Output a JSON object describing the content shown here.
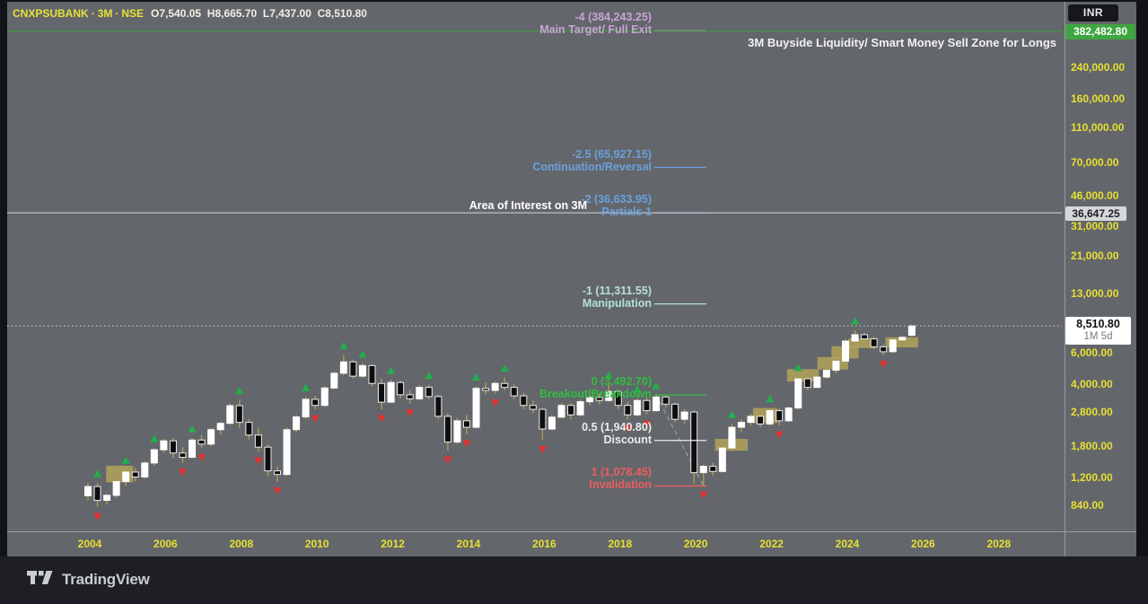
{
  "header": {
    "symbol": "CNXPSUBANK",
    "separator": "·",
    "interval": "3M",
    "exchange": "NSE",
    "ohlc": {
      "o_label": "O",
      "o": "7,540.05",
      "h_label": "H",
      "h": "8,665.70",
      "l_label": "L",
      "l": "7,437.00",
      "c_label": "C",
      "c": "8,510.80"
    }
  },
  "annotations": {
    "buyside": "3M Buyside Liquidity/ Smart Money Sell Zone for Longs",
    "area_of_interest": "Area of Interest on 3M"
  },
  "axis": {
    "currency": "INR",
    "badges": {
      "liquidity": "382,482.80",
      "area": "36,647.25",
      "price": "8,510.80",
      "countdown": "1M 5d"
    },
    "price_ticks": [
      {
        "label": "240,000.00",
        "value": 240000
      },
      {
        "label": "160,000.00",
        "value": 160000
      },
      {
        "label": "110,000.00",
        "value": 110000
      },
      {
        "label": "70,000.00",
        "value": 70000
      },
      {
        "label": "46,000.00",
        "value": 46000
      },
      {
        "label": "31,000.00",
        "value": 31000
      },
      {
        "label": "21,000.00",
        "value": 21000
      },
      {
        "label": "13,000.00",
        "value": 13000
      },
      {
        "label": "6,000.00",
        "value": 6000
      },
      {
        "label": "4,000.00",
        "value": 4000
      },
      {
        "label": "2,800.00",
        "value": 2800
      },
      {
        "label": "1,800.00",
        "value": 1800
      },
      {
        "label": "1,200.00",
        "value": 1200
      },
      {
        "label": "840.00",
        "value": 840
      }
    ],
    "year_ticks": [
      2004,
      2006,
      2008,
      2010,
      2012,
      2014,
      2016,
      2018,
      2020,
      2022,
      2024,
      2026,
      2028
    ]
  },
  "chart_data": {
    "type": "candlestick",
    "symbol": "CNXPSUBANK",
    "exchange": "NSE",
    "interval": "3M",
    "currency": "INR",
    "scale": "log",
    "ylim": [
      800,
      430000
    ],
    "xlim": [
      "2004Q1",
      "2029Q2"
    ],
    "grid": false,
    "candles": [
      [
        "2004Q1",
        950,
        1120,
        900,
        1070
      ],
      [
        "2004Q2",
        1070,
        1120,
        820,
        895
      ],
      [
        "2004Q3",
        895,
        975,
        845,
        955
      ],
      [
        "2004Q4",
        955,
        1160,
        920,
        1140
      ],
      [
        "2005Q1",
        1140,
        1330,
        1080,
        1290
      ],
      [
        "2005Q2",
        1290,
        1360,
        1140,
        1210
      ],
      [
        "2005Q3",
        1210,
        1480,
        1190,
        1450
      ],
      [
        "2005Q4",
        1450,
        1760,
        1400,
        1720
      ],
      [
        "2006Q1",
        1720,
        1980,
        1650,
        1930
      ],
      [
        "2006Q2",
        1930,
        2000,
        1540,
        1650
      ],
      [
        "2006Q3",
        1650,
        1780,
        1450,
        1560
      ],
      [
        "2006Q4",
        1560,
        2000,
        1550,
        1950
      ],
      [
        "2007Q1",
        1950,
        2080,
        1750,
        1850
      ],
      [
        "2007Q2",
        1850,
        2280,
        1800,
        2230
      ],
      [
        "2007Q3",
        2230,
        2480,
        2100,
        2420
      ],
      [
        "2007Q4",
        2420,
        3120,
        2380,
        3040
      ],
      [
        "2008Q1",
        3040,
        3280,
        2280,
        2450
      ],
      [
        "2008Q2",
        2450,
        2560,
        1950,
        2080
      ],
      [
        "2008Q3",
        2080,
        2300,
        1680,
        1780
      ],
      [
        "2008Q4",
        1780,
        1850,
        1220,
        1310
      ],
      [
        "2009Q1",
        1310,
        1390,
        1140,
        1250
      ],
      [
        "2009Q2",
        1250,
        2300,
        1230,
        2230
      ],
      [
        "2009Q3",
        2230,
        2700,
        2150,
        2630
      ],
      [
        "2009Q4",
        2630,
        3400,
        2550,
        3300
      ],
      [
        "2010Q1",
        3300,
        3450,
        2900,
        3050
      ],
      [
        "2010Q2",
        3050,
        3900,
        3000,
        3820
      ],
      [
        "2010Q3",
        3820,
        4700,
        3750,
        4620
      ],
      [
        "2010Q4",
        4620,
        5850,
        4500,
        5350
      ],
      [
        "2011Q1",
        5350,
        5500,
        4300,
        4450
      ],
      [
        "2011Q2",
        4450,
        5250,
        4350,
        5100
      ],
      [
        "2011Q3",
        5100,
        5200,
        3900,
        4050
      ],
      [
        "2011Q4",
        4050,
        4300,
        2900,
        3180
      ],
      [
        "2012Q1",
        3180,
        4250,
        3150,
        4100
      ],
      [
        "2012Q2",
        4100,
        4200,
        3350,
        3500
      ],
      [
        "2012Q3",
        3500,
        3720,
        3120,
        3320
      ],
      [
        "2012Q4",
        3320,
        3950,
        3280,
        3850
      ],
      [
        "2013Q1",
        3850,
        3980,
        3300,
        3420
      ],
      [
        "2013Q2",
        3420,
        3500,
        2550,
        2650
      ],
      [
        "2013Q3",
        2650,
        2750,
        1700,
        1900
      ],
      [
        "2013Q4",
        1900,
        2600,
        1850,
        2500
      ],
      [
        "2014Q1",
        2500,
        2700,
        2100,
        2300
      ],
      [
        "2014Q2",
        2300,
        3900,
        2250,
        3800
      ],
      [
        "2014Q3",
        3800,
        4100,
        3500,
        3700
      ],
      [
        "2014Q4",
        3700,
        4150,
        3550,
        4050
      ],
      [
        "2015Q1",
        4050,
        4380,
        3700,
        3850
      ],
      [
        "2015Q2",
        3850,
        4000,
        3300,
        3450
      ],
      [
        "2015Q3",
        3450,
        3600,
        2900,
        3050
      ],
      [
        "2015Q4",
        3050,
        3250,
        2750,
        2900
      ],
      [
        "2016Q1",
        2900,
        2950,
        1950,
        2250
      ],
      [
        "2016Q2",
        2250,
        2700,
        2200,
        2620
      ],
      [
        "2016Q3",
        2620,
        3150,
        2580,
        3050
      ],
      [
        "2016Q4",
        3050,
        3150,
        2550,
        2700
      ],
      [
        "2017Q1",
        2700,
        3300,
        2650,
        3200
      ],
      [
        "2017Q2",
        3200,
        3500,
        3050,
        3380
      ],
      [
        "2017Q3",
        3380,
        3550,
        3100,
        3250
      ],
      [
        "2017Q4",
        3250,
        4000,
        3200,
        3650
      ],
      [
        "2018Q1",
        3650,
        3750,
        2900,
        3050
      ],
      [
        "2018Q2",
        3050,
        3200,
        2550,
        2700
      ],
      [
        "2018Q3",
        2700,
        3350,
        2650,
        3250
      ],
      [
        "2018Q4",
        3250,
        3400,
        2700,
        2850
      ],
      [
        "2019Q1",
        2850,
        3492.7,
        2800,
        3400
      ],
      [
        "2019Q2",
        3400,
        3480,
        2950,
        3100
      ],
      [
        "2019Q3",
        3100,
        3150,
        2450,
        2550
      ],
      [
        "2019Q4",
        2550,
        2900,
        2400,
        2800
      ],
      [
        "2020Q1",
        2800,
        2850,
        1115,
        1280
      ],
      [
        "2020Q2",
        1280,
        1420,
        1078.45,
        1390
      ],
      [
        "2020Q3",
        1390,
        1450,
        1230,
        1300
      ],
      [
        "2020Q4",
        1300,
        1800,
        1280,
        1760
      ],
      [
        "2021Q1",
        1760,
        2400,
        1700,
        2300
      ],
      [
        "2021Q2",
        2300,
        2550,
        2150,
        2450
      ],
      [
        "2021Q3",
        2450,
        2750,
        2350,
        2650
      ],
      [
        "2021Q4",
        2650,
        2800,
        2300,
        2400
      ],
      [
        "2022Q1",
        2400,
        2950,
        2350,
        2850
      ],
      [
        "2022Q2",
        2850,
        2950,
        2350,
        2500
      ],
      [
        "2022Q3",
        2500,
        3000,
        2450,
        2950
      ],
      [
        "2022Q4",
        2950,
        4400,
        2900,
        4300
      ],
      [
        "2023Q1",
        4300,
        4450,
        3700,
        3850
      ],
      [
        "2023Q2",
        3850,
        4500,
        3800,
        4400
      ],
      [
        "2023Q3",
        4400,
        4900,
        4300,
        4800
      ],
      [
        "2023Q4",
        4800,
        5500,
        4600,
        5400
      ],
      [
        "2024Q1",
        5400,
        7200,
        5350,
        7000
      ],
      [
        "2024Q2",
        7000,
        8050,
        6500,
        7600
      ],
      [
        "2024Q3",
        7600,
        7800,
        6800,
        7200
      ],
      [
        "2024Q4",
        7200,
        7400,
        6300,
        6500
      ],
      [
        "2025Q1",
        6500,
        6700,
        5850,
        6100
      ],
      [
        "2025Q2",
        6100,
        7300,
        6050,
        7100
      ],
      [
        "2025Q3",
        7100,
        7450,
        6900,
        7350
      ],
      [
        "2025Q4",
        7540.05,
        8665.7,
        7437.0,
        8510.8
      ]
    ],
    "markers": {
      "swing_high_indices": [
        1,
        4,
        7,
        11,
        16,
        23,
        27,
        29,
        32,
        36,
        41,
        44,
        55,
        58,
        60,
        68,
        72,
        75,
        81
      ],
      "swing_low_indices": [
        1,
        10,
        12,
        18,
        20,
        24,
        31,
        34,
        38,
        40,
        43,
        48,
        57,
        59,
        65,
        73,
        84
      ]
    },
    "zones": [
      {
        "i1": 2.3,
        "i2": 4.4,
        "p1": 1130,
        "p2": 1400
      },
      {
        "i1": 66.6,
        "i2": 69.3,
        "p1": 1700,
        "p2": 1980
      },
      {
        "i1": 70.6,
        "i2": 72.4,
        "p1": 2430,
        "p2": 2950
      },
      {
        "i1": 74.2,
        "i2": 76.8,
        "p1": 4150,
        "p2": 4870
      },
      {
        "i1": 77.4,
        "i2": 79.9,
        "p1": 4850,
        "p2": 5700
      },
      {
        "i1": 78.9,
        "i2": 81.0,
        "p1": 5600,
        "p2": 6550
      },
      {
        "i1": 80.7,
        "i2": 82.8,
        "p1": 6400,
        "p2": 7250
      },
      {
        "i1": 84.6,
        "i2": 87.3,
        "p1": 6450,
        "p2": 7350
      }
    ],
    "fib": {
      "anchor_high": {
        "index": 60,
        "time": "2019Q1",
        "price": 3492.7
      },
      "anchor_low": {
        "index": 65,
        "time": "2020Q2",
        "price": 1078.45
      },
      "levels": [
        {
          "level": -4,
          "price": 384243.25,
          "label": "-4 (384,243.25)",
          "name": "Main Target/ Full Exit",
          "color": "#c9a3d6"
        },
        {
          "level": -2.5,
          "price": 65927.15,
          "label": "-2.5 (65,927.15)",
          "name": "Continuation/Reversal",
          "color": "#6ba1dc"
        },
        {
          "level": -2,
          "price": 36633.95,
          "label": "-2 (36,633.95)",
          "name": "Partials 1",
          "color": "#6ba1dc"
        },
        {
          "level": -1,
          "price": 11311.55,
          "label": "-1 (11,311.55)",
          "name": "Manipulation",
          "color": "#b5e0da"
        },
        {
          "level": 0,
          "price": 3492.7,
          "label": "0 (3,492.70)",
          "name": "Breakout/Breakdown",
          "color": "#2fbe41"
        },
        {
          "level": 0.5,
          "price": 1940.8,
          "label": "0.5 (1,940.80)",
          "name": "Discount",
          "color": "#ececec"
        },
        {
          "level": 1,
          "price": 1078.45,
          "label": "1 (1,078.45)",
          "name": "Invalidation",
          "color": "#ea5f5f"
        }
      ]
    },
    "hlines": [
      {
        "price": 382482.8,
        "axis_label": "382,482.80",
        "style": "solid",
        "color": "#3aa33a",
        "role": "buyside-liquidity"
      },
      {
        "price": 36647.25,
        "axis_label": "36,647.25",
        "style": "solid",
        "color": "#d6d6d6",
        "role": "area-of-interest"
      },
      {
        "price": 8510.8,
        "axis_label": "8,510.80",
        "style": "dotted",
        "color": "#d8d8d8",
        "role": "last-price",
        "countdown": "1M 5d"
      }
    ],
    "colors": {
      "up_candle": "#ffffff",
      "down_candle": "#0e0e0e",
      "down_candle_border": "#ededed",
      "wick": "#ab9c52",
      "zone": "#b3a559",
      "marker_up": "#21b14b",
      "marker_down": "#e03131",
      "axis_text": "#e6e031",
      "pane_bg": "#63666b"
    }
  },
  "footer": {
    "brand": "TradingView"
  }
}
